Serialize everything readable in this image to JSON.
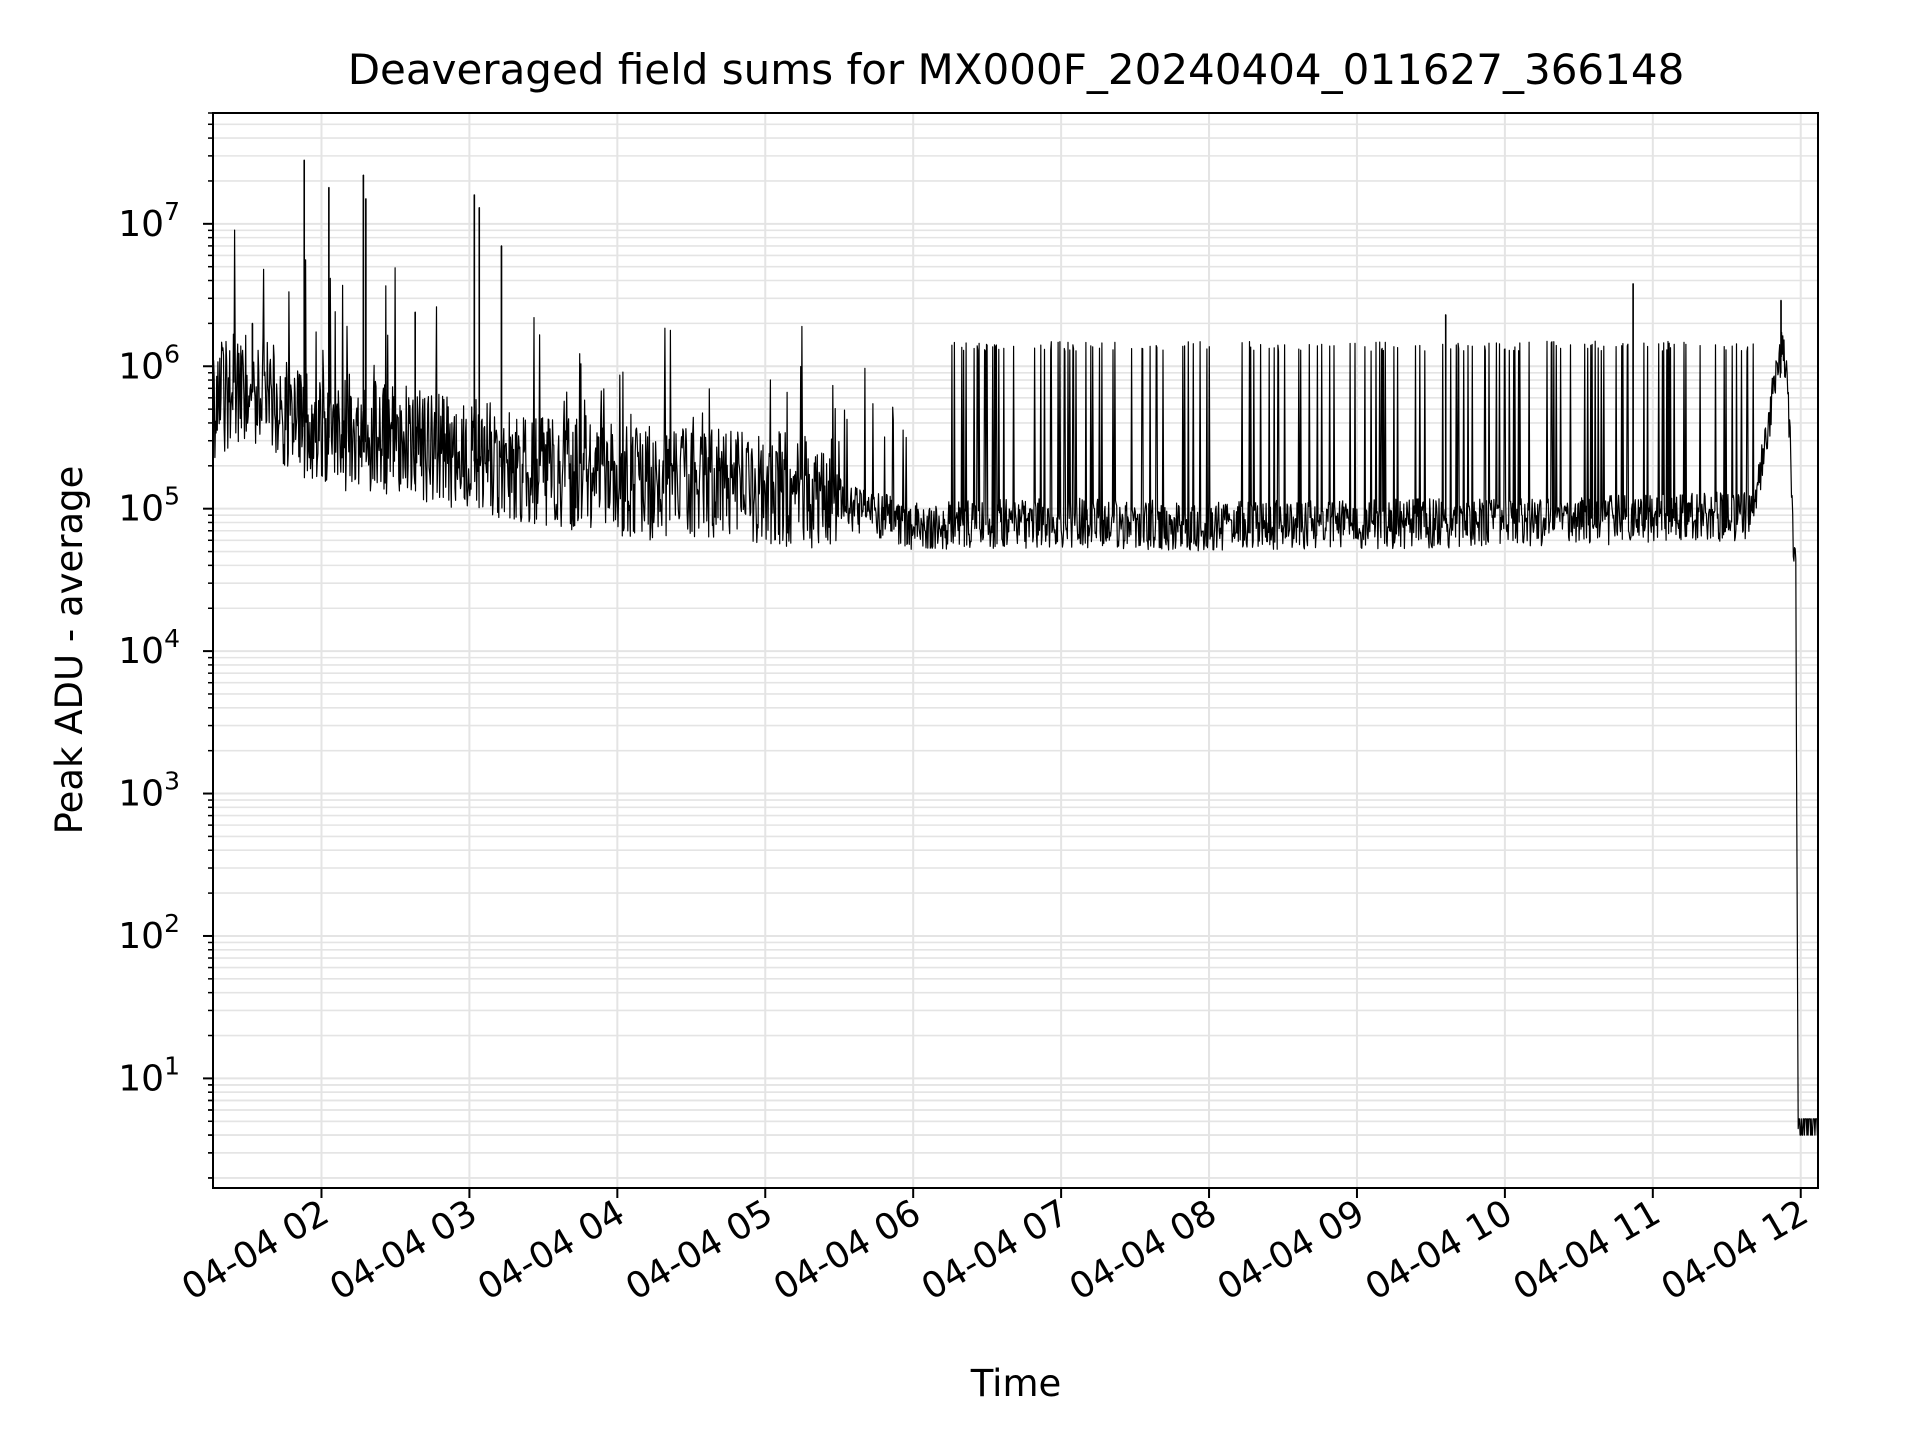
{
  "chart_data": {
    "type": "line",
    "title": "Deaveraged field sums for MX000F_20240404_011627_366148",
    "xlabel": "Time",
    "ylabel": "Peak ADU - average",
    "yscale": "log",
    "ylim": [
      1.7,
      60000000
    ],
    "xlim": [
      "2024-04-04 01:16",
      "2024-04-04 12:07"
    ],
    "grid": true,
    "line_color": "#000000",
    "x_ticks": [
      {
        "t": "2024-04-04 02:00",
        "label": "04-04 02"
      },
      {
        "t": "2024-04-04 03:00",
        "label": "04-04 03"
      },
      {
        "t": "2024-04-04 04:00",
        "label": "04-04 04"
      },
      {
        "t": "2024-04-04 05:00",
        "label": "04-04 05"
      },
      {
        "t": "2024-04-04 06:00",
        "label": "04-04 06"
      },
      {
        "t": "2024-04-04 07:00",
        "label": "04-04 07"
      },
      {
        "t": "2024-04-04 08:00",
        "label": "04-04 08"
      },
      {
        "t": "2024-04-04 09:00",
        "label": "04-04 09"
      },
      {
        "t": "2024-04-04 10:00",
        "label": "04-04 10"
      },
      {
        "t": "2024-04-04 11:00",
        "label": "04-04 11"
      },
      {
        "t": "2024-04-04 12:00",
        "label": "04-04 12"
      }
    ],
    "y_ticks": [
      {
        "v": 10,
        "label": "10",
        "exp": "1"
      },
      {
        "v": 100,
        "label": "10",
        "exp": "2"
      },
      {
        "v": 1000,
        "label": "10",
        "exp": "3"
      },
      {
        "v": 10000,
        "label": "10",
        "exp": "4"
      },
      {
        "v": 100000,
        "label": "10",
        "exp": "5"
      },
      {
        "v": 1000000,
        "label": "10",
        "exp": "6"
      },
      {
        "v": 10000000,
        "label": "10",
        "exp": "7"
      }
    ],
    "baseline": [
      {
        "t": "2024-04-04 01:16",
        "v": 500000
      },
      {
        "t": "2024-04-04 01:30",
        "v": 700000
      },
      {
        "t": "2024-04-04 01:45",
        "v": 450000
      },
      {
        "t": "2024-04-04 02:00",
        "v": 320000
      },
      {
        "t": "2024-04-04 02:30",
        "v": 280000
      },
      {
        "t": "2024-04-04 03:00",
        "v": 220000
      },
      {
        "t": "2024-04-04 03:30",
        "v": 170000
      },
      {
        "t": "2024-04-04 04:00",
        "v": 140000
      },
      {
        "t": "2024-04-04 05:00",
        "v": 130000
      },
      {
        "t": "2024-04-04 05:30",
        "v": 110000
      },
      {
        "t": "2024-04-04 06:00",
        "v": 75000
      },
      {
        "t": "2024-04-04 07:00",
        "v": 80000
      },
      {
        "t": "2024-04-04 08:00",
        "v": 75000
      },
      {
        "t": "2024-04-04 09:00",
        "v": 78000
      },
      {
        "t": "2024-04-04 10:00",
        "v": 80000
      },
      {
        "t": "2024-04-04 11:00",
        "v": 85000
      },
      {
        "t": "2024-04-04 11:40",
        "v": 90000
      },
      {
        "t": "2024-04-04 11:50",
        "v": 800000
      },
      {
        "t": "2024-04-04 11:53",
        "v": 1400000
      },
      {
        "t": "2024-04-04 11:55",
        "v": 600000
      },
      {
        "t": "2024-04-04 11:58",
        "v": 20000
      },
      {
        "t": "2024-04-04 11:59",
        "v": 4
      },
      {
        "t": "2024-04-04 12:07",
        "v": 4
      }
    ],
    "spikes": [
      {
        "t": "2024-04-04 01:53",
        "v": 28000000
      },
      {
        "t": "2024-04-04 02:03",
        "v": 18000000
      },
      {
        "t": "2024-04-04 02:17",
        "v": 22000000
      },
      {
        "t": "2024-04-04 02:18",
        "v": 15000000
      },
      {
        "t": "2024-04-04 03:02",
        "v": 16000000
      },
      {
        "t": "2024-04-04 03:04",
        "v": 13000000
      },
      {
        "t": "2024-04-04 03:13",
        "v": 7000000
      },
      {
        "t": "2024-04-04 02:38",
        "v": 2400000
      },
      {
        "t": "2024-04-04 01:32",
        "v": 2000000
      },
      {
        "t": "2024-04-04 10:52",
        "v": 3800000
      },
      {
        "t": "2024-04-04 11:52",
        "v": 2900000
      },
      {
        "t": "2024-04-04 09:36",
        "v": 2300000
      }
    ],
    "dense_levels": {
      "band_top": 1500000,
      "band_bottom": 50000,
      "end_floor": 4
    }
  }
}
